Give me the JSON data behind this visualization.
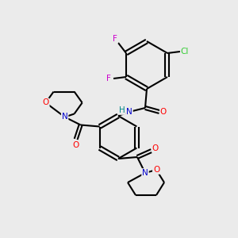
{
  "background_color": "#ebebeb",
  "bond_color": "#000000",
  "atom_colors": {
    "F": "#cc00cc",
    "Cl": "#33cc33",
    "O": "#ff0000",
    "N": "#0000cc",
    "H": "#008888",
    "C": "#000000"
  },
  "figsize": [
    3.0,
    3.0
  ],
  "dpi": 100
}
